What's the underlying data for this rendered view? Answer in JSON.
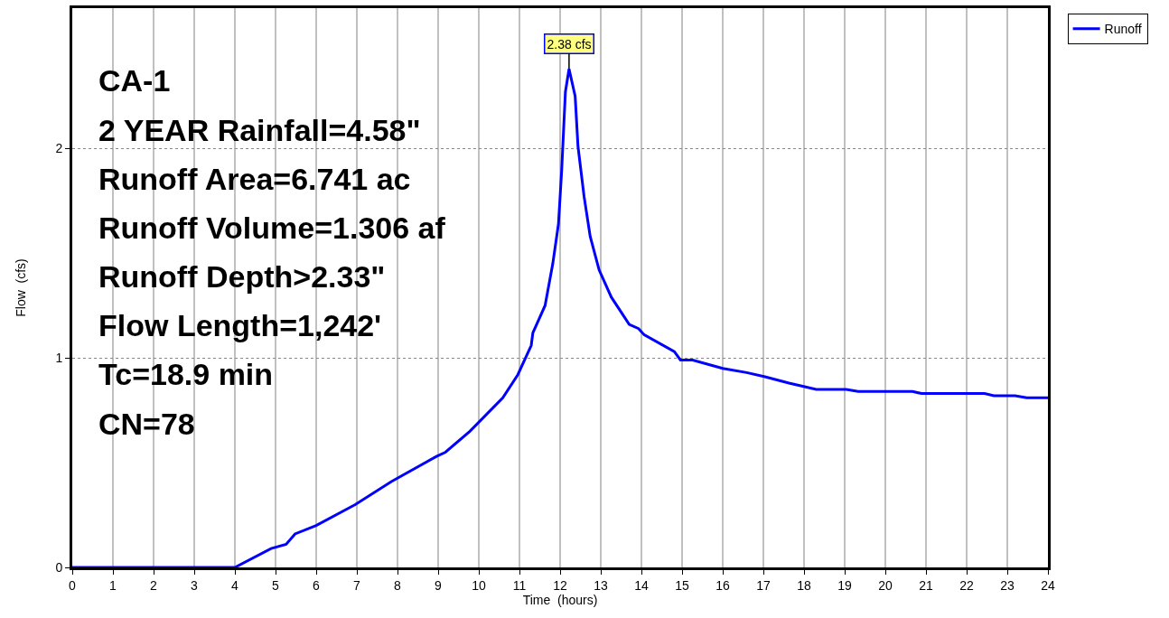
{
  "chart_data": {
    "type": "line",
    "xlabel": "Time  (hours)",
    "ylabel": "Flow  (cfs)",
    "x": [
      0,
      4.0,
      4.89,
      5.26,
      5.48,
      6.0,
      6.96,
      7.85,
      8.96,
      9.18,
      9.78,
      10.59,
      10.96,
      11.29,
      11.33,
      11.63,
      11.82,
      11.96,
      12.04,
      12.13,
      12.22,
      12.37,
      12.44,
      12.59,
      12.74,
      12.96,
      13.26,
      13.7,
      13.93,
      14.07,
      14.81,
      14.96,
      15.26,
      16.0,
      16.59,
      17.04,
      17.63,
      18.3,
      19.04,
      19.33,
      20.67,
      20.89,
      21.63,
      21.93,
      22.44,
      22.67,
      23.19,
      23.48,
      24
    ],
    "series": [
      {
        "name": "Runoff",
        "color": "#0000ff",
        "values": [
          0,
          0,
          0.09,
          0.11,
          0.16,
          0.2,
          0.3,
          0.41,
          0.53,
          0.55,
          0.65,
          0.81,
          0.92,
          1.06,
          1.12,
          1.25,
          1.45,
          1.64,
          1.9,
          2.27,
          2.38,
          2.25,
          2.01,
          1.77,
          1.58,
          1.42,
          1.29,
          1.16,
          1.14,
          1.11,
          1.03,
          0.99,
          0.99,
          0.95,
          0.93,
          0.91,
          0.88,
          0.85,
          0.85,
          0.84,
          0.84,
          0.83,
          0.83,
          0.83,
          0.83,
          0.82,
          0.82,
          0.81,
          0.81
        ]
      }
    ],
    "xlim": [
      0,
      24
    ],
    "ylim": [
      0,
      2.67
    ],
    "xticks": [
      0,
      1,
      2,
      3,
      4,
      5,
      6,
      7,
      8,
      9,
      10,
      11,
      12,
      13,
      14,
      15,
      16,
      17,
      18,
      19,
      20,
      21,
      22,
      23,
      24
    ],
    "yticks": [
      0,
      1,
      2
    ],
    "grid": true,
    "legend": "top right",
    "marker": "none",
    "line_style": "solid",
    "annotations": [
      "CA-1",
      "2 YEAR Rainfall=4.58\"",
      "Runoff Area=6.741 ac",
      "Runoff Volume=1.306 af",
      "Runoff Depth>2.33\"",
      "Flow Length=1,242'",
      "Tc=18.9 min",
      "CN=78",
      {
        "text": "2.38 cfs",
        "x": 12.22,
        "y": 2.38
      }
    ]
  }
}
